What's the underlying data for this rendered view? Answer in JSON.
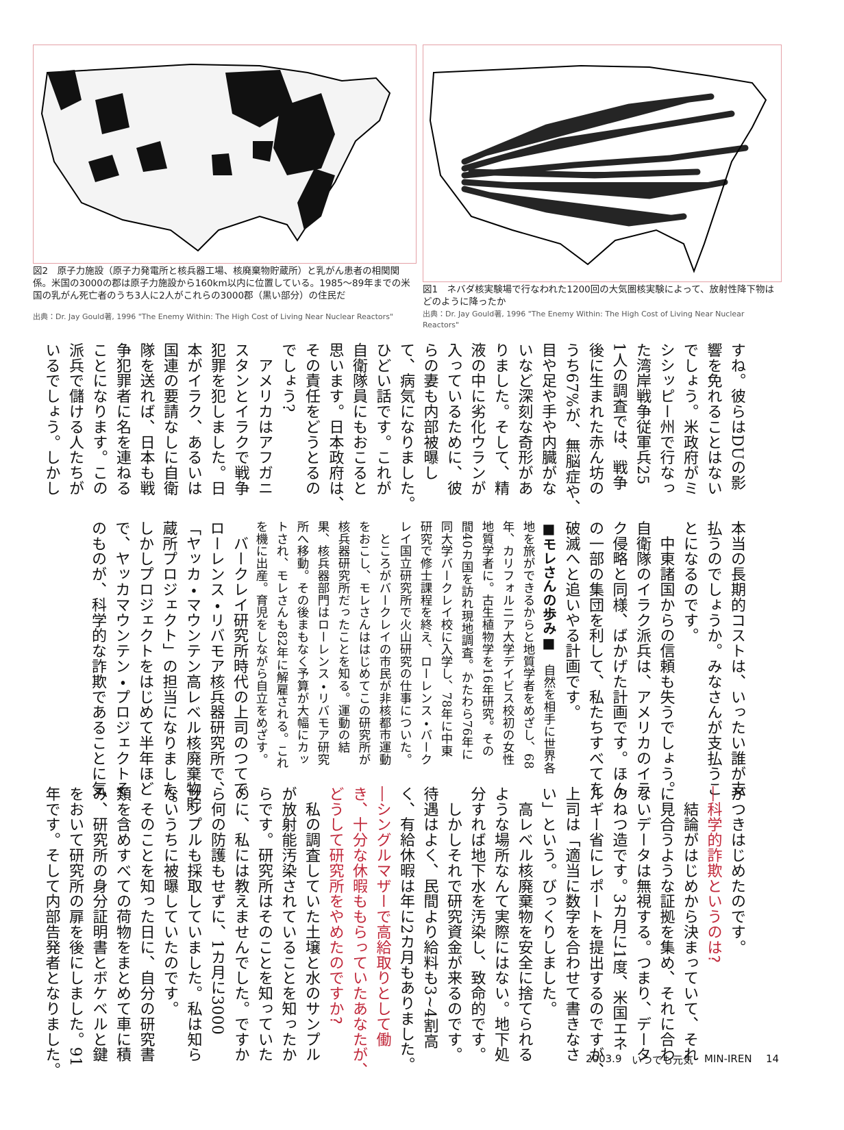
{
  "figures": [
    {
      "caption": "図2　原子力施設（原子力発電所と核兵器工場、核廃棄物貯蔵所）と乳がん患者の相関関係。米国の3000の郡は原子力施設から160km以内に位置している。1985～89年までの米国の乳がん死亡者のうち3人に2人がこれらの3000郡（黒い部分）の住民だ",
      "source": "出典：Dr. Jay Gould著, 1996 \"The Enemy Within: The High Cost of Living Near Nuclear Reactors\""
    },
    {
      "caption": "図1　ネバダ核実験場で行なわれた1200回の大気圏核実験によって、放射性降下物はどのように降ったか",
      "source": "出典：Dr. Jay Gould著, 1996 \"The Enemy Within: The High Cost of Living Near Nuclear Reactors\""
    }
  ],
  "tier1": [
    "すね。彼らはDUの影",
    "響を免れることはない",
    "でしょう。米政府がミ",
    "シシッピー州で行なっ",
    "た湾岸戦争従軍兵25",
    "1人の調査では、戦争",
    "後に生まれた赤ん坊の",
    "うち67%が、無脳症や、",
    "目や足や手や内臓がな",
    "いなど深刻な奇形があ",
    "りました。そして、精",
    "液の中に劣化ウランが",
    "入っているために、彼",
    "らの妻も内部被曝し",
    "て、病気になりました。",
    "ひどい話です。これが",
    "自衛隊員にもおこると",
    "思います。日本政府は、",
    "その責任をどうとるの",
    "でしょう?",
    "　アメリカはアフガニ",
    "スタンとイラクで戦争",
    "犯罪を犯しました。日",
    "本がイラク、あるいは",
    "国連の要請なしに自衛",
    "隊を送れば、日本も戦",
    "争犯罪者に名を連ねる",
    "ことになります。この",
    "派兵で儲ける人たちが",
    "いるでしょう。しかし"
  ],
  "tier2": {
    "before": [
      "本当の長期的コストは、いったい誰が支",
      "払うのでしょうか。みなさんが支払うこ",
      "とになるのです。",
      "　中東諸国からの信頼も失うでしょう。",
      "自衛隊のイラク派兵は、アメリカのイラ",
      "ク侵略と同様、ばかげた計画です。ほん",
      "の一部の集団を利して、私たちすべてを",
      "破滅へと追いやる計画です。"
    ],
    "profile": {
      "heading": "■モレさんの歩み■",
      "lines": [
        "自然を相手に世界各",
        "地を旅ができるからと地質学者をめざし、68",
        "年、カリフォルニア大学デイビス校初の女性",
        "地質学者に。古生植物学を16年研究。その",
        "間40カ国を訪れ現地調査。かたわら76年に",
        "同大学バークレイ校に入学し、78年に中東",
        "研究で修士課程を終え、ローレンス・バーク",
        "レイ国立研究所で火山研究の仕事についた。",
        "　ところがバークレイの市民が非核都市運動",
        "をおこし、モレさんははじめてこの研究所が",
        "核兵器研究所だったことを知る。運動の結",
        "果、核兵器部門はローレンス・リバモア研究",
        "所へ移動。その後まもなく予算が大幅にカッ",
        "トされ、モレさんも82年に解雇される。これ",
        "を機に出産。育児をしながら自立をめざす。"
      ]
    },
    "after": [
      "　バークレイ研究所時代の上司のつてで",
      "ローレンス・リバモア核兵器研究所で、",
      "「ヤッカ・マウンテン高レベル核廃棄物貯",
      "蔵所プロジェクト」の担当になりました。",
      "しかしプロジェクトをはじめて半年ほど",
      "で、ヤッカマウンテン・プロジェクトそ",
      "のものが、科学的な詐欺であることに気"
    ]
  },
  "tier3": [
    {
      "kind": "body",
      "lines": [
        "がつきはじめたのです。"
      ]
    },
    {
      "kind": "question",
      "lines": [
        "―科学的詐欺というのは?"
      ]
    },
    {
      "kind": "body",
      "lines": [
        "　結論がはじめから決まっていて、それ",
        "に見合うような証拠を集め、それに合わ",
        "ないデータは無視する。つまり、データ",
        "のねつ造です。3カ月に1度、米国エネ",
        "ルギー省にレポートを提出するのですが、",
        "上司は「適当に数字を合わせて書きなさ",
        "い」という。びっくりしました。",
        "　高レベル核廃棄物を安全に捨てられる",
        "ような場所なんて実際にはない。地下処",
        "分すれば地下水を汚染し、致命的です。",
        "　しかしそれで研究資金が来るのです。",
        "待遇はよく、民間より給料も3~4割高",
        "く、有給休暇は年に2カ月もありました。"
      ]
    },
    {
      "kind": "question",
      "lines": [
        "―シングルマザーで高給取りとして働",
        "き、十分な休暇ももらっていたあなたが、",
        "どうして研究所をやめたのですか?"
      ]
    },
    {
      "kind": "body",
      "lines": [
        "　私の調査していた土壌と水のサンプル",
        "が放射能汚染されていることを知ったか",
        "らです。研究所はそのことを知っていた",
        "のに、私には教えませんでした。ですか",
        "ら何の防護もせずに、1カ月に3000",
        "サンプルも採取していました。私は知ら",
        "ないうちに被曝していたのです。",
        "　そのことを知った日に、自分の研究書",
        "類を含めすべての荷物をまとめて車に積",
        "み、研究所の身分証明書とボケベルと鍵",
        "をおいて研究所の扉を後にしました。91",
        "年です。そして内部告発者となりました。"
      ]
    }
  ],
  "footer": {
    "date": "2003.9",
    "magazine": "いつでも元気",
    "publisher": "MIN-IREN",
    "page": "14"
  }
}
